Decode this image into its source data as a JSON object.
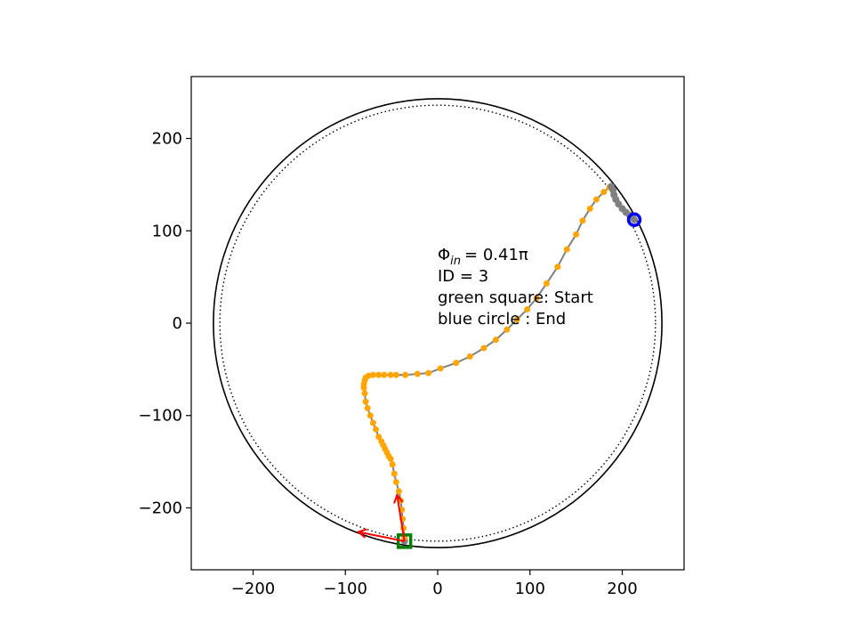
{
  "chart_data": {
    "type": "scatter",
    "xlim": [
      -267,
      267
    ],
    "ylim": [
      -267,
      267
    ],
    "xticks": [
      -200,
      -100,
      0,
      100,
      200
    ],
    "yticks": [
      -200,
      -100,
      0,
      100,
      200
    ],
    "xtick_labels": [
      "−200",
      "−100",
      "0",
      "100",
      "200"
    ],
    "ytick_labels": [
      "−200",
      "−100",
      "0",
      "100",
      "200"
    ],
    "boundary": {
      "outer_radius": 243,
      "inner_radius": 236
    },
    "annotation": [
      "ID = 3",
      "green square: Start",
      "blue circle : End"
    ],
    "phi_label": {
      "symbol": "Φ",
      "subscript": "in",
      "value": "= 0.41π"
    },
    "colors": {
      "path_line": "#808080",
      "orange_points": "#ffa500",
      "grey_points": "#808080",
      "start_marker": "#008000",
      "end_marker": "#0000ff",
      "arrows": "#ff0000"
    },
    "path": [
      [
        -36,
        -236
      ],
      [
        -36,
        -232
      ],
      [
        -37,
        -222
      ],
      [
        -38,
        -212
      ],
      [
        -39,
        -202
      ],
      [
        -40,
        -192
      ],
      [
        -42,
        -182
      ],
      [
        -45,
        -172
      ],
      [
        -47,
        -163
      ],
      [
        -49,
        -153
      ],
      [
        -51,
        -147
      ],
      [
        -53,
        -144
      ],
      [
        -55,
        -140
      ],
      [
        -57,
        -136
      ],
      [
        -59,
        -132
      ],
      [
        -61,
        -128
      ],
      [
        -64,
        -123
      ],
      [
        -67,
        -115
      ],
      [
        -70,
        -108
      ],
      [
        -73,
        -100
      ],
      [
        -76,
        -92
      ],
      [
        -78,
        -85
      ],
      [
        -79,
        -76
      ],
      [
        -80,
        -70
      ],
      [
        -80,
        -66
      ],
      [
        -79,
        -62
      ],
      [
        -78,
        -59
      ],
      [
        -75,
        -57
      ],
      [
        -70,
        -56
      ],
      [
        -64,
        -56
      ],
      [
        -58,
        -56
      ],
      [
        -51,
        -56
      ],
      [
        -45,
        -56
      ],
      [
        -35,
        -56
      ],
      [
        -22,
        -55
      ],
      [
        -10,
        -54
      ],
      [
        3,
        -49
      ],
      [
        20,
        -43
      ],
      [
        35,
        -36
      ],
      [
        50,
        -27
      ],
      [
        63,
        -18
      ],
      [
        75,
        -7
      ],
      [
        86,
        4
      ],
      [
        97,
        15
      ],
      [
        107,
        27
      ],
      [
        118,
        43
      ],
      [
        130,
        61
      ],
      [
        140,
        80
      ],
      [
        150,
        96
      ],
      [
        157,
        111
      ],
      [
        165,
        124
      ],
      [
        172,
        134
      ],
      [
        180,
        142
      ],
      [
        186,
        147
      ],
      [
        188,
        148
      ],
      [
        190,
        144
      ],
      [
        191,
        139
      ],
      [
        193,
        134
      ],
      [
        196,
        129
      ],
      [
        200,
        124
      ],
      [
        204,
        120
      ],
      [
        208,
        117
      ],
      [
        211,
        115
      ],
      [
        213,
        112
      ]
    ],
    "orange_point_count": 54,
    "start": [
      -36,
      -236
    ],
    "end": [
      213,
      112
    ],
    "arrows": [
      {
        "from": [
          -36,
          -236
        ],
        "to": [
          -44,
          -186
        ]
      },
      {
        "from": [
          -36,
          -236
        ],
        "to": [
          -86,
          -226
        ]
      }
    ]
  }
}
